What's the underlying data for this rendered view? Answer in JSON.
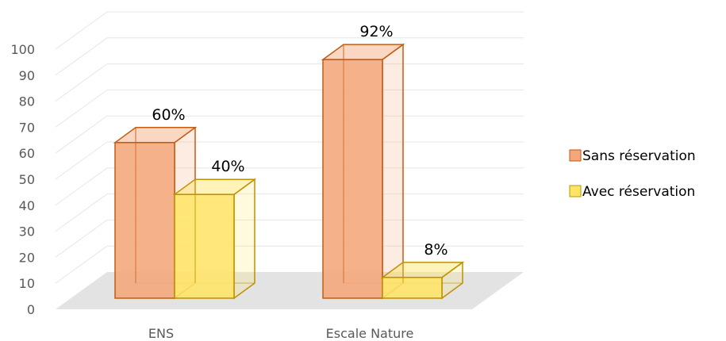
{
  "chart_data": {
    "type": "bar",
    "style": "3d-clustered-column",
    "categories": [
      "ENS",
      "Escale Nature"
    ],
    "series": [
      {
        "name": "Sans réservation",
        "values": [
          60,
          92
        ],
        "labels": [
          "60%",
          "92%"
        ],
        "color": "#F4A77A",
        "edge": "#C55A11"
      },
      {
        "name": "Avec réservation",
        "values": [
          40,
          8
        ],
        "labels": [
          "40%",
          "8%"
        ],
        "color": "#FFE566",
        "edge": "#BF9000"
      }
    ],
    "ylim": [
      0,
      100
    ],
    "yticks": [
      0,
      10,
      20,
      30,
      40,
      50,
      60,
      70,
      80,
      90,
      100
    ],
    "grid": true,
    "legend_position": "right"
  }
}
